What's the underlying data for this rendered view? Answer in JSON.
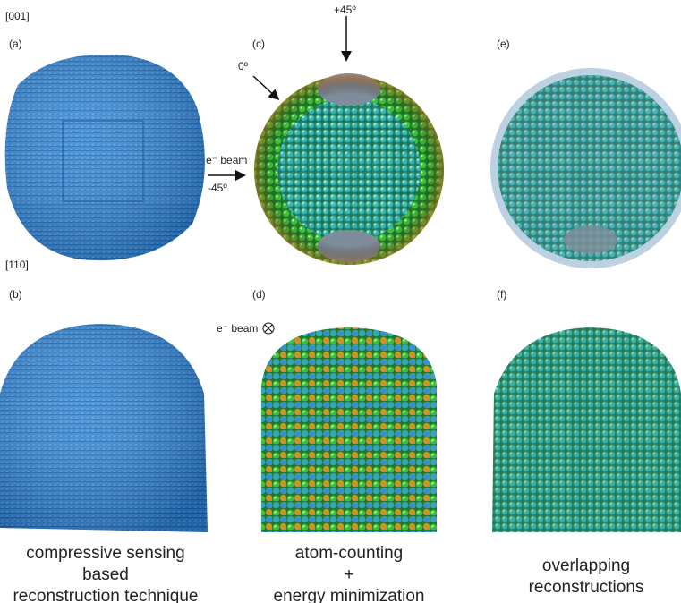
{
  "row_labels": [
    "[001]",
    "[110]"
  ],
  "panel_labels": {
    "a": "(a)",
    "b": "(b)",
    "c": "(c)",
    "d": "(d)",
    "e": "(e)",
    "f": "(f)"
  },
  "annotations": {
    "plus45": "+45º",
    "zero": "0º",
    "beam_top": "e⁻ beam",
    "minus45": "-45º",
    "beam_bottom": "e⁻ beam"
  },
  "captions": [
    [
      "compressive sensing",
      "based",
      "reconstruction technique"
    ],
    [
      "atom-counting",
      "+",
      "energy minimization"
    ],
    [
      "overlapping",
      "reconstructions"
    ]
  ]
}
